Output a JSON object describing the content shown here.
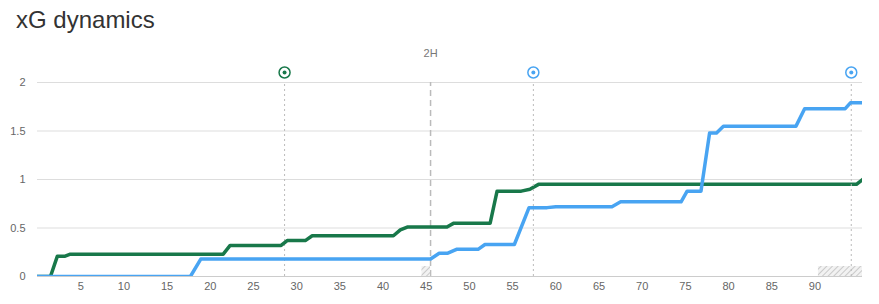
{
  "chart_data": {
    "type": "line",
    "title": "xG dynamics",
    "xlim": [
      0,
      95.5
    ],
    "xticks": [
      5,
      10,
      15,
      20,
      25,
      30,
      35,
      40,
      45,
      50,
      55,
      60,
      65,
      70,
      75,
      80,
      85,
      90
    ],
    "ylim": [
      0,
      2
    ],
    "yticks": [
      0,
      0.5,
      1,
      1.5,
      2
    ],
    "grid": true,
    "annotations": [
      {
        "x": 45.5,
        "label": "2H"
      }
    ],
    "added_time": [
      [
        44.5,
        45.5
      ],
      [
        90.4,
        95.5
      ]
    ],
    "series": [
      {
        "color": "#18784a",
        "x": [
          0,
          1.5,
          2.3,
          3.2,
          3.8,
          21.5,
          22.3,
          28.2,
          28.9,
          31,
          31.8,
          41.2,
          42,
          42.8,
          47.4,
          48.2,
          52.4,
          53.2,
          56,
          57,
          58,
          94.8,
          95.5
        ],
        "values": [
          0,
          0,
          0.21,
          0.21,
          0.23,
          0.23,
          0.32,
          0.32,
          0.37,
          0.37,
          0.42,
          0.42,
          0.48,
          0.51,
          0.51,
          0.55,
          0.55,
          0.88,
          0.88,
          0.9,
          0.95,
          0.95,
          1.0
        ],
        "goals": [
          28.6
        ]
      },
      {
        "color": "#48a4f2",
        "x": [
          0,
          17.7,
          18.9,
          45.5,
          46.5,
          47.5,
          48.5,
          51,
          51.8,
          55.2,
          56.9,
          59,
          60,
          66.5,
          67.5,
          74.5,
          75.2,
          76.8,
          77.8,
          78.6,
          79.4,
          87.8,
          88.8,
          93.5,
          94.1,
          95.5
        ],
        "values": [
          0,
          0,
          0.18,
          0.18,
          0.24,
          0.24,
          0.28,
          0.28,
          0.33,
          0.33,
          0.71,
          0.71,
          0.72,
          0.72,
          0.77,
          0.77,
          0.88,
          0.88,
          1.48,
          1.48,
          1.55,
          1.55,
          1.73,
          1.73,
          1.79,
          1.79
        ],
        "goals": [
          57.4,
          94.2
        ]
      }
    ]
  }
}
